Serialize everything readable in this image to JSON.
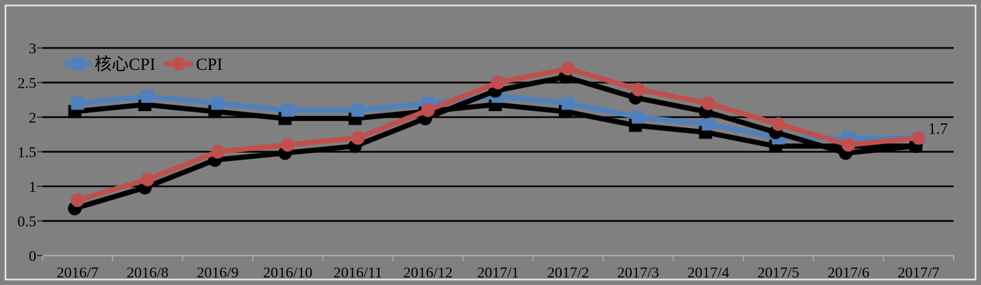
{
  "chart_data": {
    "type": "line",
    "title": "",
    "xlabel": "",
    "ylabel": "",
    "categories": [
      "2016/7",
      "2016/8",
      "2016/9",
      "2016/10",
      "2016/11",
      "2016/12",
      "2017/1",
      "2017/2",
      "2017/3",
      "2017/4",
      "2017/5",
      "2017/6",
      "2017/7"
    ],
    "series": [
      {
        "name": "核心CPI",
        "color": "#4F81BD",
        "marker": "square",
        "values": [
          2.2,
          2.3,
          2.2,
          2.1,
          2.1,
          2.2,
          2.3,
          2.2,
          2.0,
          1.9,
          1.7,
          1.7,
          1.7
        ]
      },
      {
        "name": "CPI",
        "color": "#C0504D",
        "marker": "circle",
        "values": [
          0.8,
          1.1,
          1.5,
          1.6,
          1.7,
          2.1,
          2.5,
          2.7,
          2.4,
          2.2,
          1.9,
          1.6,
          1.7
        ]
      }
    ],
    "ylim": [
      0,
      3
    ],
    "y_ticks": [
      0,
      0.5,
      1,
      1.5,
      2,
      2.5,
      3
    ],
    "grid": true,
    "legend_position": "top-left-inside",
    "annotation": {
      "text": "1.7",
      "series_index": 1,
      "point_index": 12
    },
    "colors": {
      "background": "#808080",
      "gridline": "#000000",
      "axis_line": "#A6A6A6",
      "frame": "#E3E3E3",
      "text": "#000000",
      "shadow": "#000000"
    }
  }
}
